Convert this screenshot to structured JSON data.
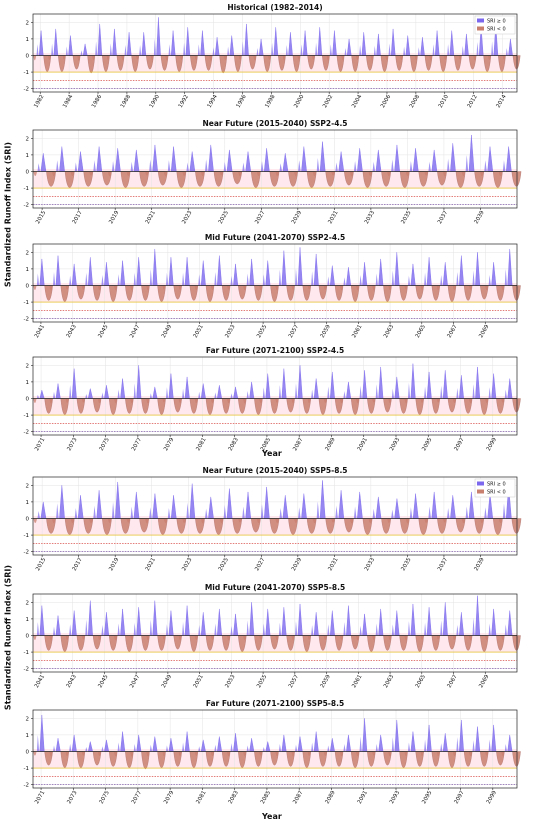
{
  "figure": {
    "ylabel_group1": "Standardized Runoff Index (SRI)",
    "ylabel_group2": "Standardized Runoff Index (SRI)",
    "xlabel_group1": "Year",
    "xlabel_group2": "Year"
  },
  "legend": {
    "pos_label": "SRI ≥ 0",
    "neg_label": "SRI < 0"
  },
  "colors": {
    "positive": "#7b68ee",
    "negative": "#c97f6e",
    "pink_band": "#ffd6e0",
    "thresholds": [
      "#e6b800",
      "#d9534f",
      "#6a3d9a"
    ]
  },
  "chart_data": [
    {
      "type": "area",
      "title": "Historical (1982–2014)",
      "ylim": [
        -2.2,
        2.5
      ],
      "yticks": [
        -2,
        -1,
        0,
        1,
        2
      ],
      "thresholds": [
        -1.0,
        -1.5,
        -2.0
      ],
      "x_range": [
        1981.5,
        2015
      ],
      "xticks": [
        "1982",
        "1984",
        "1986",
        "1988",
        "1990",
        "1992",
        "1994",
        "1996",
        "1998",
        "2000",
        "2002",
        "2004",
        "2006",
        "2008",
        "2010",
        "2012",
        "2014"
      ],
      "peaks_pos": [
        1.5,
        1.6,
        1.2,
        0.7,
        1.9,
        1.6,
        1.4,
        1.4,
        2.3,
        1.5,
        1.7,
        1.5,
        1.1,
        1.2,
        1.9,
        1.0,
        1.7,
        1.4,
        1.5,
        1.7,
        1.5,
        1.0,
        1.4,
        1.3,
        1.6,
        1.2,
        1.1,
        1.5,
        1.5,
        1.3,
        1.8,
        1.9,
        1.0
      ],
      "peaks_neg": [
        -1.3,
        -1.3,
        -1.1,
        -1.4,
        -1.3,
        -1.2,
        -1.3,
        -1.1,
        -1.2,
        -1.3,
        -1.2,
        -1.2,
        -1.4,
        -1.3,
        -1.1,
        -1.3,
        -1.2,
        -1.3,
        -1.1,
        -1.2,
        -1.3,
        -1.3,
        -1.2,
        -1.3,
        -1.2,
        -1.3,
        -1.2,
        -1.3,
        -1.2,
        -1.1,
        -1.3,
        -1.3,
        -1.1
      ],
      "legend": true
    },
    {
      "type": "area",
      "title": "Near Future (2015-2040) SSP2-4.5",
      "ylim": [
        -2.2,
        2.5
      ],
      "yticks": [
        -2,
        -1,
        0,
        1,
        2
      ],
      "thresholds": [
        -1.0,
        -1.5,
        -2.0
      ],
      "x_range": [
        2014.5,
        2041
      ],
      "xticks": [
        "2015",
        "2017",
        "2019",
        "2021",
        "2023",
        "2025",
        "2027",
        "2029",
        "2031",
        "2033",
        "2035",
        "2037",
        "2039"
      ],
      "peaks_pos": [
        1.1,
        1.5,
        1.2,
        1.5,
        1.4,
        1.3,
        1.6,
        1.5,
        1.2,
        1.6,
        1.3,
        1.2,
        1.4,
        1.1,
        1.5,
        1.8,
        1.2,
        1.4,
        1.3,
        1.6,
        1.4,
        1.3,
        1.7,
        2.2,
        1.5,
        1.5
      ],
      "peaks_neg": [
        -1.2,
        -1.3,
        -1.2,
        -1.1,
        -1.3,
        -1.2,
        -1.1,
        -1.3,
        -1.2,
        -1.2,
        -1.0,
        -1.3,
        -1.2,
        -1.2,
        -1.3,
        -1.2,
        -1.1,
        -1.3,
        -1.2,
        -1.3,
        -1.2,
        -1.1,
        -1.3,
        -1.2,
        -1.3,
        -1.2
      ],
      "legend": false
    },
    {
      "type": "area",
      "title": "Mid Future (2041-2070)  SSP2-4.5",
      "ylim": [
        -2.2,
        2.5
      ],
      "yticks": [
        -2,
        -1,
        0,
        1,
        2
      ],
      "thresholds": [
        -1.0,
        -1.5,
        -2.0
      ],
      "x_range": [
        2040.5,
        2071
      ],
      "xticks": [
        "2041",
        "2043",
        "2045",
        "2047",
        "2049",
        "2051",
        "2053",
        "2055",
        "2057",
        "2059",
        "2061",
        "2063",
        "2065",
        "2067",
        "2069"
      ],
      "peaks_pos": [
        1.6,
        1.8,
        1.3,
        1.7,
        1.4,
        1.5,
        1.7,
        2.2,
        1.7,
        1.7,
        1.5,
        1.8,
        1.3,
        1.6,
        1.5,
        2.1,
        2.3,
        1.9,
        1.2,
        1.1,
        1.4,
        1.6,
        2.0,
        1.3,
        1.7,
        1.4,
        1.8,
        2.0,
        1.4,
        2.2
      ],
      "peaks_neg": [
        -1.2,
        -1.3,
        -1.1,
        -1.2,
        -1.3,
        -1.2,
        -1.2,
        -1.3,
        -1.1,
        -1.2,
        -1.3,
        -1.2,
        -1.1,
        -1.2,
        -1.3,
        -1.2,
        -1.2,
        -1.1,
        -1.2,
        -1.3,
        -1.2,
        -1.3,
        -1.2,
        -1.1,
        -1.2,
        -1.3,
        -1.2,
        -1.1,
        -1.2,
        -1.2
      ],
      "legend": false
    },
    {
      "type": "area",
      "title": "Far Future (2071-2100)  SSP2-4.5",
      "ylim": [
        -2.2,
        2.5
      ],
      "yticks": [
        -2,
        -1,
        0,
        1,
        2
      ],
      "thresholds": [
        -1.0,
        -1.5,
        -2.0
      ],
      "x_range": [
        2070.5,
        2100.5
      ],
      "xticks": [
        "2071",
        "2073",
        "2075",
        "2077",
        "2079",
        "2081",
        "2083",
        "2085",
        "2087",
        "2089",
        "2091",
        "2093",
        "2095",
        "2097",
        "2099"
      ],
      "peaks_pos": [
        0.5,
        0.9,
        1.8,
        0.6,
        0.8,
        1.2,
        2.0,
        0.7,
        1.5,
        1.3,
        0.9,
        0.8,
        0.7,
        1.0,
        1.5,
        1.8,
        2.0,
        1.2,
        1.6,
        1.0,
        1.7,
        1.9,
        1.3,
        2.1,
        1.6,
        1.7,
        1.4,
        1.9,
        1.5,
        1.2
      ],
      "peaks_neg": [
        -1.2,
        -1.3,
        -1.2,
        -1.1,
        -1.3,
        -1.2,
        -1.2,
        -1.3,
        -1.1,
        -1.2,
        -1.3,
        -1.2,
        -1.2,
        -1.3,
        -1.2,
        -1.1,
        -1.2,
        -1.3,
        -1.2,
        -1.3,
        -1.2,
        -1.1,
        -1.2,
        -1.3,
        -1.2,
        -1.1,
        -1.2,
        -1.3,
        -1.2,
        -1.1
      ],
      "legend": false
    },
    {
      "type": "area",
      "title": "Near Future (2015-2040) SSP5-8.5",
      "ylim": [
        -2.2,
        2.5
      ],
      "yticks": [
        -2,
        -1,
        0,
        1,
        2
      ],
      "thresholds": [
        -1.0,
        -1.5,
        -2.0
      ],
      "x_range": [
        2014.5,
        2041
      ],
      "xticks": [
        "2015",
        "2017",
        "2019",
        "2021",
        "2023",
        "2025",
        "2027",
        "2029",
        "2031",
        "2033",
        "2035",
        "2037",
        "2039"
      ],
      "peaks_pos": [
        1.0,
        2.0,
        1.4,
        1.7,
        2.2,
        1.6,
        1.5,
        1.4,
        2.1,
        1.3,
        1.8,
        1.6,
        1.9,
        1.4,
        1.5,
        2.3,
        1.7,
        1.6,
        1.3,
        1.2,
        1.5,
        1.6,
        1.4,
        1.6,
        1.5,
        2.0
      ],
      "peaks_neg": [
        -1.2,
        -1.3,
        -1.2,
        -1.3,
        -1.2,
        -1.1,
        -1.3,
        -1.2,
        -1.2,
        -1.3,
        -1.2,
        -1.1,
        -1.2,
        -1.3,
        -1.2,
        -1.2,
        -1.1,
        -1.3,
        -1.2,
        -1.2,
        -1.3,
        -1.2,
        -1.1,
        -1.2,
        -1.3,
        -1.2
      ],
      "legend": true
    },
    {
      "type": "area",
      "title": "Mid Future (2041-2070)  SSP5-8.5",
      "ylim": [
        -2.2,
        2.5
      ],
      "yticks": [
        -2,
        -1,
        0,
        1,
        2
      ],
      "thresholds": [
        -1.0,
        -1.5,
        -2.0
      ],
      "x_range": [
        2040.5,
        2071
      ],
      "xticks": [
        "2041",
        "2043",
        "2045",
        "2047",
        "2049",
        "2051",
        "2053",
        "2055",
        "2057",
        "2059",
        "2061",
        "2063",
        "2065",
        "2067",
        "2069"
      ],
      "peaks_pos": [
        1.8,
        1.2,
        1.5,
        2.1,
        1.4,
        1.6,
        1.7,
        2.1,
        1.5,
        1.8,
        1.4,
        1.6,
        1.3,
        2.0,
        1.6,
        1.7,
        1.9,
        1.4,
        1.5,
        1.8,
        1.3,
        1.6,
        1.5,
        1.9,
        1.7,
        2.0,
        1.4,
        2.4,
        1.6,
        1.5
      ],
      "peaks_neg": [
        -1.2,
        -1.3,
        -1.2,
        -1.1,
        -1.2,
        -1.3,
        -1.2,
        -1.2,
        -1.1,
        -1.3,
        -1.2,
        -1.2,
        -1.3,
        -1.2,
        -1.1,
        -1.2,
        -1.3,
        -1.2,
        -1.2,
        -1.1,
        -1.3,
        -1.2,
        -1.2,
        -1.3,
        -1.2,
        -1.1,
        -1.2,
        -1.3,
        -1.2,
        -1.2
      ],
      "legend": false
    },
    {
      "type": "area",
      "title": "Far Future (2071-2100)  SSP5-8.5",
      "ylim": [
        -2.2,
        2.5
      ],
      "yticks": [
        -2,
        -1,
        0,
        1,
        2
      ],
      "thresholds": [
        -1.0,
        -1.5,
        -2.0
      ],
      "x_range": [
        2070.5,
        2100.5
      ],
      "xticks": [
        "2071",
        "2073",
        "2075",
        "2077",
        "2079",
        "2081",
        "2083",
        "2085",
        "2087",
        "2089",
        "2091",
        "2093",
        "2095",
        "2097",
        "2099"
      ],
      "peaks_pos": [
        2.2,
        0.8,
        1.0,
        0.6,
        0.7,
        1.2,
        1.0,
        0.9,
        0.8,
        1.2,
        0.7,
        0.9,
        1.1,
        0.8,
        0.6,
        1.0,
        0.9,
        1.2,
        0.8,
        1.0,
        2.0,
        1.0,
        1.9,
        1.2,
        1.6,
        1.1,
        1.9,
        1.5,
        1.6,
        1.0
      ],
      "peaks_neg": [
        -1.1,
        -1.3,
        -1.3,
        -1.1,
        -1.2,
        -1.3,
        -1.4,
        -1.3,
        -1.2,
        -1.3,
        -1.2,
        -1.2,
        -1.3,
        -1.2,
        -1.1,
        -1.2,
        -1.3,
        -1.2,
        -1.2,
        -1.3,
        -1.2,
        -1.1,
        -1.3,
        -1.2,
        -1.2,
        -1.3,
        -1.2,
        -1.2,
        -1.1,
        -1.2
      ],
      "legend": false
    }
  ]
}
